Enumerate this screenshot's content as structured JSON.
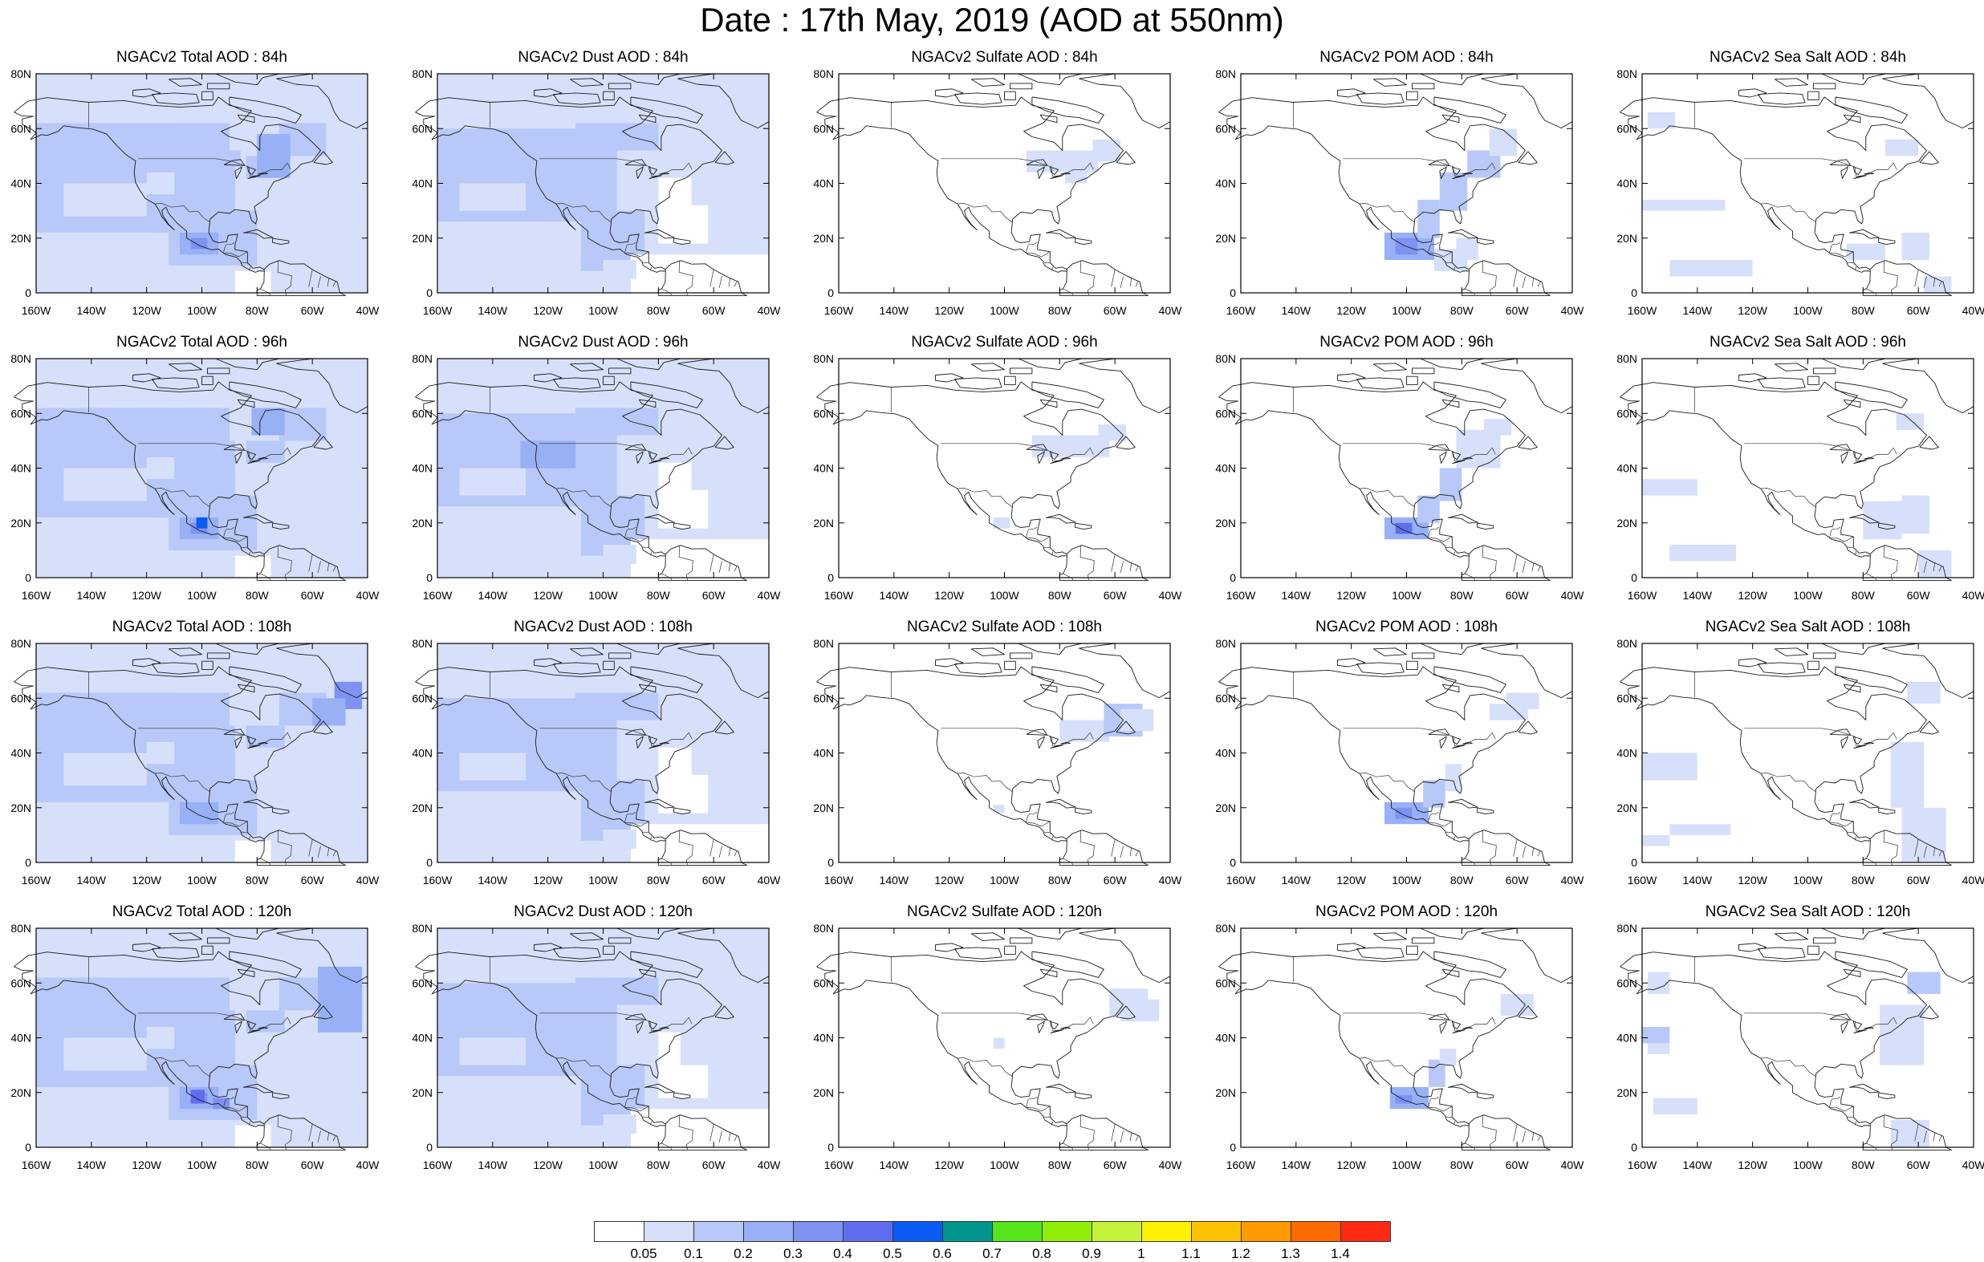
{
  "title": "Date : 17th May, 2019 (AOD at 550nm)",
  "map": {
    "lat_ticks": [
      "80N",
      "60N",
      "40N",
      "20N",
      "0"
    ],
    "lon_ticks": [
      "160W",
      "140W",
      "120W",
      "100W",
      "80W",
      "60W",
      "40W"
    ],
    "extent": {
      "lon_min": -160,
      "lon_max": -40,
      "lat_min": 0,
      "lat_max": 80
    }
  },
  "panels": [
    {
      "title": "NGACv2 Total AOD : 84h",
      "species": "total",
      "forecast_hour": 84
    },
    {
      "title": "NGACv2 Dust AOD : 84h",
      "species": "dust",
      "forecast_hour": 84
    },
    {
      "title": "NGACv2 Sulfate AOD : 84h",
      "species": "sulfate",
      "forecast_hour": 84
    },
    {
      "title": "NGACv2 POM AOD : 84h",
      "species": "pom",
      "forecast_hour": 84
    },
    {
      "title": "NGACv2 Sea Salt AOD : 84h",
      "species": "seasalt",
      "forecast_hour": 84
    },
    {
      "title": "NGACv2 Total AOD : 96h",
      "species": "total",
      "forecast_hour": 96
    },
    {
      "title": "NGACv2 Dust AOD : 96h",
      "species": "dust",
      "forecast_hour": 96
    },
    {
      "title": "NGACv2 Sulfate AOD : 96h",
      "species": "sulfate",
      "forecast_hour": 96
    },
    {
      "title": "NGACv2 POM AOD : 96h",
      "species": "pom",
      "forecast_hour": 96
    },
    {
      "title": "NGACv2 Sea Salt AOD : 96h",
      "species": "seasalt",
      "forecast_hour": 96
    },
    {
      "title": "NGACv2 Total AOD : 108h",
      "species": "total",
      "forecast_hour": 108
    },
    {
      "title": "NGACv2 Dust AOD : 108h",
      "species": "dust",
      "forecast_hour": 108
    },
    {
      "title": "NGACv2 Sulfate AOD : 108h",
      "species": "sulfate",
      "forecast_hour": 108
    },
    {
      "title": "NGACv2 POM AOD : 108h",
      "species": "pom",
      "forecast_hour": 108
    },
    {
      "title": "NGACv2 Sea Salt AOD : 108h",
      "species": "seasalt",
      "forecast_hour": 108
    },
    {
      "title": "NGACv2 Total AOD : 120h",
      "species": "total",
      "forecast_hour": 120
    },
    {
      "title": "NGACv2 Dust AOD : 120h",
      "species": "dust",
      "forecast_hour": 120
    },
    {
      "title": "NGACv2 Sulfate AOD : 120h",
      "species": "sulfate",
      "forecast_hour": 120
    },
    {
      "title": "NGACv2 POM AOD : 120h",
      "species": "pom",
      "forecast_hour": 120
    },
    {
      "title": "NGACv2 Sea Salt  AOD : 120h",
      "species": "seasalt",
      "forecast_hour": 120
    }
  ],
  "colorbar": {
    "labels": [
      "0.05",
      "0.1",
      "0.2",
      "0.3",
      "0.4",
      "0.5",
      "0.6",
      "0.7",
      "0.8",
      "0.9",
      "1",
      "1.1",
      "1.2",
      "1.3",
      "1.4"
    ],
    "colors": [
      "#ffffff",
      "#d6e0fa",
      "#b8c8f8",
      "#98b0f6",
      "#7f92f2",
      "#5f6ef0",
      "#0a5cf5",
      "#00968f",
      "#55e51a",
      "#90ee08",
      "#c4f23a",
      "#fff200",
      "#ffc200",
      "#ff9a00",
      "#ff6a00",
      "#ff2a12"
    ]
  }
}
